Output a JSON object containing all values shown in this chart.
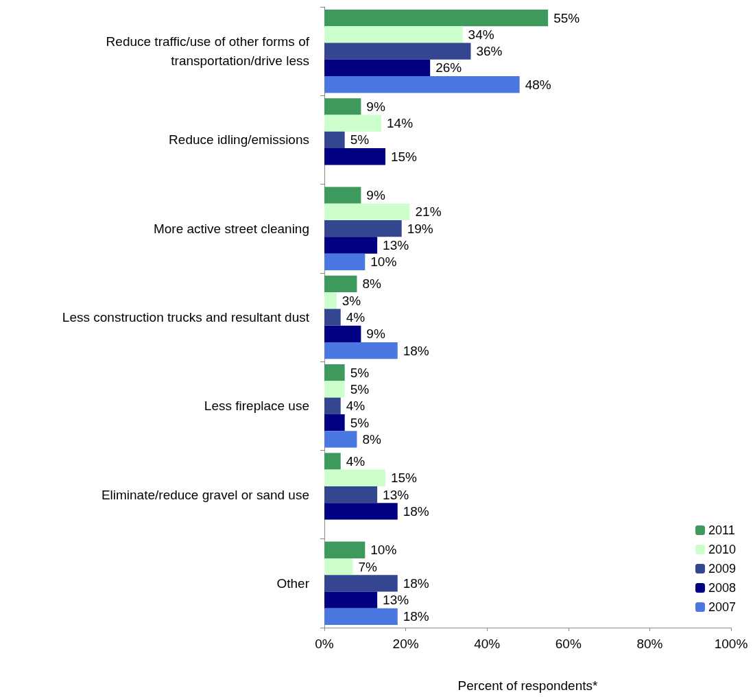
{
  "chart_data": {
    "type": "bar",
    "orientation": "horizontal",
    "xlabel": "Percent of respondents*",
    "categories": [
      "Reduce traffic/use of other forms of\ntransportation/drive less",
      "Reduce idling/emissions",
      "More active street cleaning",
      "Less construction trucks and resultant dust",
      "Less fireplace use",
      "Eliminate/reduce gravel or sand use",
      "Other"
    ],
    "series": [
      {
        "name": "2011",
        "color": "#3d9a5c",
        "values": [
          55,
          9,
          9,
          8,
          5,
          4,
          10
        ],
        "value_labels": [
          "55%",
          "9%",
          "9%",
          "8%",
          "5%",
          "4%",
          "10%"
        ]
      },
      {
        "name": "2010",
        "color": "#ccffcc",
        "values": [
          34,
          14,
          21,
          3,
          5,
          15,
          7
        ],
        "value_labels": [
          "34%",
          "14%",
          "21%",
          "3%",
          "5%",
          "15%",
          "7%"
        ]
      },
      {
        "name": "2009",
        "color": "#34468f",
        "values": [
          36,
          5,
          19,
          4,
          4,
          13,
          18
        ],
        "value_labels": [
          "36%",
          "5%",
          "19%",
          "4%",
          "4%",
          "13%",
          "18%"
        ]
      },
      {
        "name": "2008",
        "color": "#000080",
        "values": [
          26,
          15,
          13,
          9,
          5,
          18,
          13
        ],
        "value_labels": [
          "26%",
          "15%",
          "13%",
          "9%",
          "5%",
          "18%",
          "13%"
        ]
      },
      {
        "name": "2007",
        "color": "#4a78e0",
        "values": [
          48,
          null,
          10,
          18,
          8,
          null,
          18
        ],
        "value_labels": [
          "48%",
          null,
          "10%",
          "18%",
          "8%",
          null,
          "18%"
        ]
      }
    ],
    "xlim": [
      0,
      100
    ],
    "xticks": [
      {
        "value": 0,
        "label": "0%"
      },
      {
        "value": 20,
        "label": "20%"
      },
      {
        "value": 40,
        "label": "40%"
      },
      {
        "value": 60,
        "label": "60%"
      },
      {
        "value": 80,
        "label": "80%"
      },
      {
        "value": 100,
        "label": "100%"
      }
    ],
    "grid": false,
    "legend": "bottom right"
  }
}
